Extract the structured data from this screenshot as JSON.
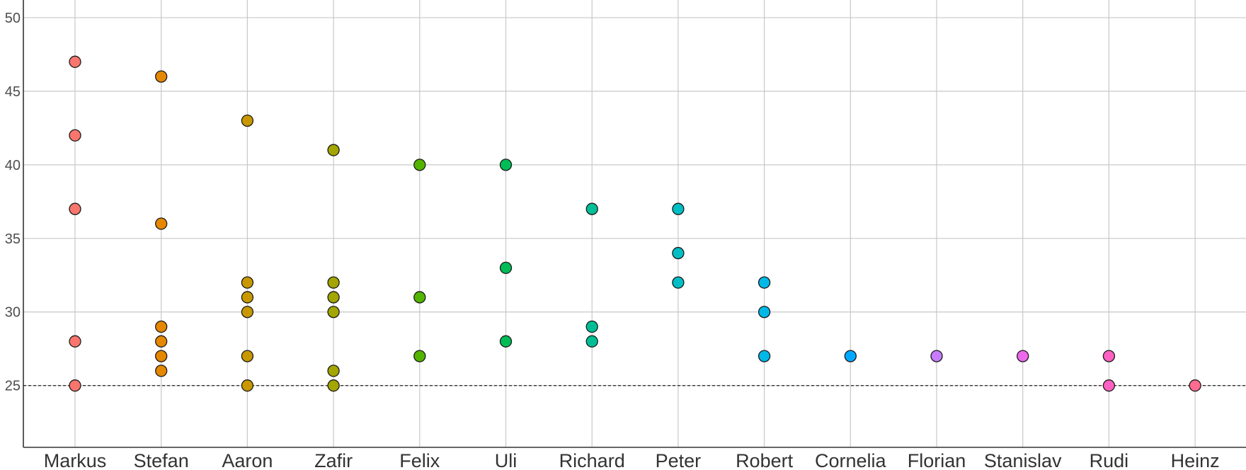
{
  "chart_data": {
    "type": "scatter",
    "title": "",
    "xlabel": "",
    "ylabel": "",
    "categories": [
      "Markus",
      "Stefan",
      "Aaron",
      "Zafir",
      "Felix",
      "Uli",
      "Richard",
      "Peter",
      "Robert",
      "Cornelia",
      "Florian",
      "Stanislav",
      "Rudi",
      "Heinz"
    ],
    "series": [
      {
        "category": "Markus",
        "values": [
          47,
          42,
          37,
          28,
          25
        ],
        "color": "#F8766D"
      },
      {
        "category": "Stefan",
        "values": [
          46,
          36,
          29,
          28,
          27,
          26
        ],
        "color": "#E58700"
      },
      {
        "category": "Aaron",
        "values": [
          43,
          32,
          31,
          30,
          27,
          25
        ],
        "color": "#C99800"
      },
      {
        "category": "Zafir",
        "values": [
          41,
          32,
          31,
          30,
          26,
          25
        ],
        "color": "#A3A500"
      },
      {
        "category": "Felix",
        "values": [
          40,
          31,
          27
        ],
        "color": "#53B400"
      },
      {
        "category": "Uli",
        "values": [
          40,
          33,
          28
        ],
        "color": "#00BC56"
      },
      {
        "category": "Richard",
        "values": [
          37,
          29,
          28
        ],
        "color": "#00BF96"
      },
      {
        "category": "Peter",
        "values": [
          37,
          34,
          32
        ],
        "color": "#00BFC4"
      },
      {
        "category": "Robert",
        "values": [
          32,
          30,
          27
        ],
        "color": "#00B8E7"
      },
      {
        "category": "Cornelia",
        "values": [
          27
        ],
        "color": "#00A9FF"
      },
      {
        "category": "Florian",
        "values": [
          27
        ],
        "color": "#C77CFF"
      },
      {
        "category": "Stanislav",
        "values": [
          27
        ],
        "color": "#ED68ED"
      },
      {
        "category": "Rudi",
        "values": [
          27,
          25
        ],
        "color": "#FF61C3"
      },
      {
        "category": "Heinz",
        "values": [
          25
        ],
        "color": "#FF6C91"
      }
    ],
    "ylim": [
      20.8,
      51.2
    ],
    "yticks": [
      "25",
      "30",
      "35",
      "40",
      "45",
      "50"
    ],
    "reference_line": 25,
    "grid": true,
    "legend": "none"
  }
}
